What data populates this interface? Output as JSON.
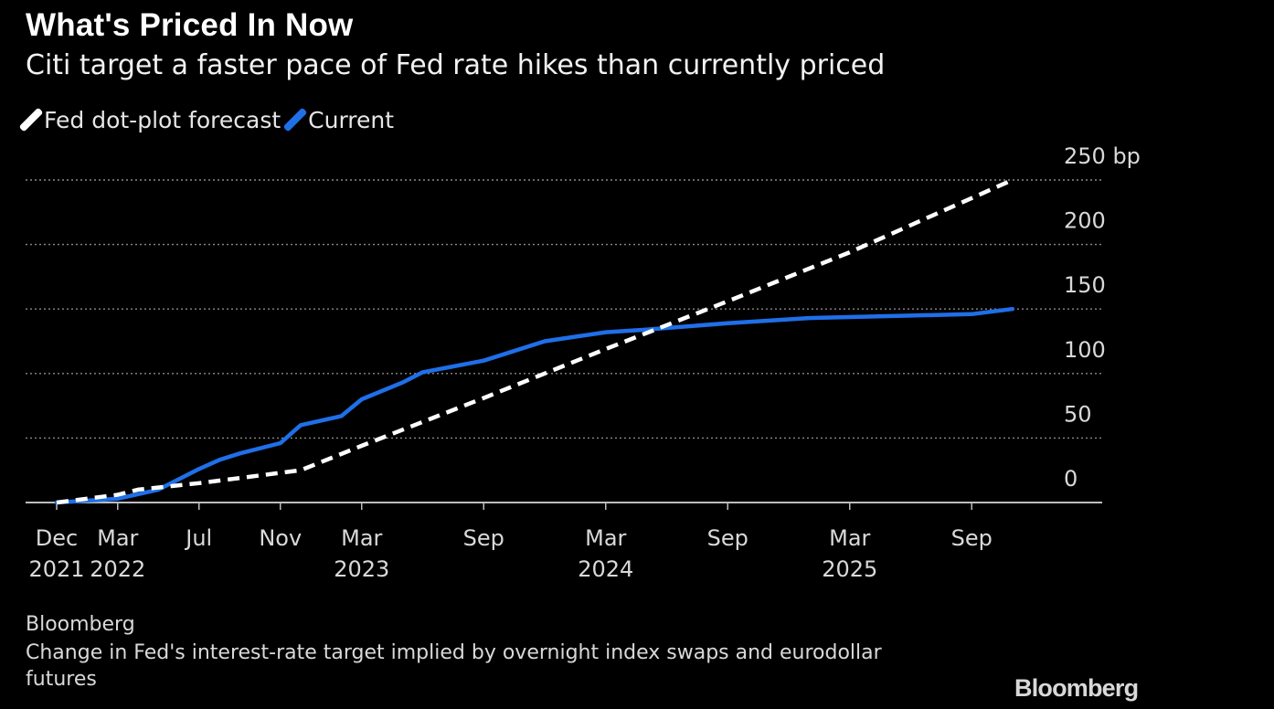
{
  "header": {
    "title": "What's Priced In Now",
    "subtitle": "Citi target a faster pace of Fed rate hikes than currently priced"
  },
  "footer": {
    "source": "Bloomberg",
    "note": "Change in Fed's interest-rate target implied by overnight index swaps and eurodollar futures",
    "logo": "Bloomberg"
  },
  "chart_data": {
    "type": "line",
    "ylim": [
      0,
      250
    ],
    "y_unit": "bp",
    "y_ticks": [
      "250 bp",
      "200",
      "150",
      "100",
      "50",
      "0"
    ],
    "y_tick_values": [
      250,
      200,
      150,
      100,
      50,
      0
    ],
    "x_range": [
      "2021-12",
      "2025-12"
    ],
    "x_ticks": [
      {
        "date": "2021-12",
        "line1": "Dec",
        "line2": "2021"
      },
      {
        "date": "2022-03",
        "line1": "Mar",
        "line2": "2022"
      },
      {
        "date": "2022-07",
        "line1": "Jul",
        "line2": ""
      },
      {
        "date": "2022-11",
        "line1": "Nov",
        "line2": ""
      },
      {
        "date": "2023-03",
        "line1": "Mar",
        "line2": "2023"
      },
      {
        "date": "2023-09",
        "line1": "Sep",
        "line2": ""
      },
      {
        "date": "2024-03",
        "line1": "Mar",
        "line2": "2024"
      },
      {
        "date": "2024-09",
        "line1": "Sep",
        "line2": ""
      },
      {
        "date": "2025-03",
        "line1": "Mar",
        "line2": "2025"
      },
      {
        "date": "2025-09",
        "line1": "Sep",
        "line2": ""
      }
    ],
    "grid": true,
    "legend_position": "top-left",
    "series": [
      {
        "name": "Fed dot-plot forecast",
        "color": "#ffffff",
        "style": "dashed",
        "points": [
          [
            "2021-12",
            0
          ],
          [
            "2022-03",
            6
          ],
          [
            "2022-04",
            10
          ],
          [
            "2022-07",
            15
          ],
          [
            "2022-09",
            19
          ],
          [
            "2022-11",
            23
          ],
          [
            "2022-12",
            25
          ],
          [
            "2023-03",
            44
          ],
          [
            "2023-09",
            81
          ],
          [
            "2024-03",
            119
          ],
          [
            "2024-09",
            156
          ],
          [
            "2025-03",
            194
          ],
          [
            "2025-11",
            250
          ]
        ]
      },
      {
        "name": "Current",
        "color": "#1f6fe8",
        "style": "solid",
        "points": [
          [
            "2021-12",
            0
          ],
          [
            "2022-01",
            1
          ],
          [
            "2022-03",
            3
          ],
          [
            "2022-05",
            10
          ],
          [
            "2022-07",
            26
          ],
          [
            "2022-08",
            33
          ],
          [
            "2022-09",
            38
          ],
          [
            "2022-11",
            46
          ],
          [
            "2022-12",
            60
          ],
          [
            "2023-02",
            67
          ],
          [
            "2023-03",
            80
          ],
          [
            "2023-05",
            93
          ],
          [
            "2023-06",
            101
          ],
          [
            "2023-09",
            110
          ],
          [
            "2023-12",
            125
          ],
          [
            "2024-03",
            132
          ],
          [
            "2024-05",
            134
          ],
          [
            "2024-09",
            139
          ],
          [
            "2025-01",
            143
          ],
          [
            "2025-09",
            146
          ],
          [
            "2025-11",
            150
          ]
        ]
      }
    ]
  }
}
